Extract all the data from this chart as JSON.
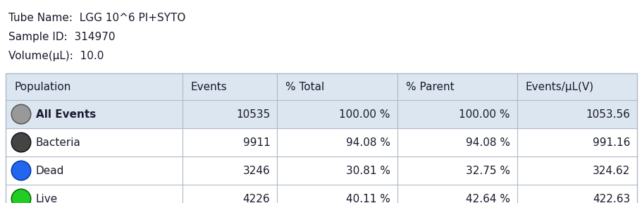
{
  "header_text": [
    "Tube Name:  LGG 10^6 PI+SYTO",
    "Sample ID:  314970",
    "Volume(μL):  10.0"
  ],
  "columns": [
    "Population",
    "Events",
    "% Total",
    "% Parent",
    "Events/μL(V)"
  ],
  "rows": [
    {
      "name": "All Events",
      "events": "10535",
      "pct_total": "100.00 %",
      "pct_parent": "100.00 %",
      "events_ul": "1053.56",
      "circle_face": "#999999",
      "circle_edge": "#555555",
      "highlight": true
    },
    {
      "name": "Bacteria",
      "events": "9911",
      "pct_total": "94.08 %",
      "pct_parent": "94.08 %",
      "events_ul": "991.16",
      "circle_face": "#444444",
      "circle_edge": "#111111",
      "highlight": false
    },
    {
      "name": "Dead",
      "events": "3246",
      "pct_total": "30.81 %",
      "pct_parent": "32.75 %",
      "events_ul": "324.62",
      "circle_face": "#2266ee",
      "circle_edge": "#0033aa",
      "highlight": false
    },
    {
      "name": "Live",
      "events": "4226",
      "pct_total": "40.11 %",
      "pct_parent": "42.64 %",
      "events_ul": "422.63",
      "circle_face": "#22cc22",
      "circle_edge": "#006600",
      "highlight": false
    }
  ],
  "header_bg": "#dce6f1",
  "row_bg_highlight": "#dce6f1",
  "row_bg_normal": "#ffffff",
  "border_color": "#b0b8c8",
  "text_color": "#1a1a2e",
  "font_size": 11,
  "header_font_size": 11,
  "fig_width": 9.12,
  "fig_height": 2.88,
  "dpi": 100
}
